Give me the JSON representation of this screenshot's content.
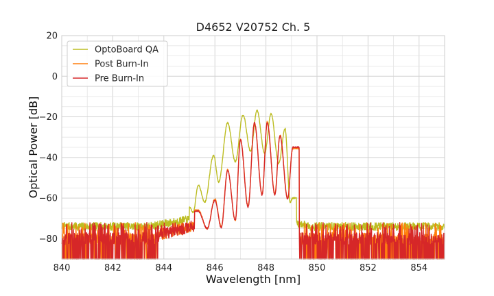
{
  "chart_data": {
    "type": "line",
    "title": "D4652 V20752 Ch. 5",
    "xlabel": "Wavelength [nm]",
    "ylabel": "Optical Power [dB]",
    "xlim": [
      840,
      855
    ],
    "ylim": [
      -90,
      20
    ],
    "xticks": [
      840,
      842,
      844,
      846,
      848,
      850,
      852,
      854
    ],
    "yticks": [
      -80,
      -60,
      -40,
      -20,
      0,
      20
    ],
    "ytick_labels": [
      "−80",
      "−60",
      "−40",
      "−20",
      "0",
      "20"
    ],
    "grid": true,
    "legend_position": "upper-left",
    "series": [
      {
        "name": "OptoBoard QA",
        "color": "#bcbd22",
        "noise_floor": -74,
        "band": [
          845.0,
          849.2
        ],
        "peaks": [
          {
            "x": 844.95,
            "y": -63.5
          },
          {
            "x": 845.35,
            "y": -53.5
          },
          {
            "x": 845.95,
            "y": -39.0
          },
          {
            "x": 846.5,
            "y": -23.0
          },
          {
            "x": 847.1,
            "y": -19.0
          },
          {
            "x": 847.65,
            "y": -16.8
          },
          {
            "x": 848.2,
            "y": -18.5
          },
          {
            "x": 848.75,
            "y": -26.0
          },
          {
            "x": 849.05,
            "y": -60.0
          }
        ],
        "valleys": [
          {
            "x": 845.15,
            "y": -67.0
          },
          {
            "x": 845.6,
            "y": -62.0
          },
          {
            "x": 846.15,
            "y": -52.0
          },
          {
            "x": 846.8,
            "y": -42.0
          },
          {
            "x": 847.4,
            "y": -37.0
          },
          {
            "x": 847.95,
            "y": -38.0
          },
          {
            "x": 848.5,
            "y": -43.0
          },
          {
            "x": 848.95,
            "y": -62.0
          }
        ]
      },
      {
        "name": "Post Burn-In",
        "color": "#ff7f0e",
        "noise_floor": -80,
        "band": [
          845.2,
          849.3
        ],
        "peaks": [
          {
            "x": 845.35,
            "y": -66.0
          },
          {
            "x": 846.0,
            "y": -60.5
          },
          {
            "x": 846.5,
            "y": -46.0
          },
          {
            "x": 847.0,
            "y": -31.0
          },
          {
            "x": 847.55,
            "y": -23.0
          },
          {
            "x": 848.05,
            "y": -22.5
          },
          {
            "x": 848.55,
            "y": -29.0
          },
          {
            "x": 849.05,
            "y": -35.5
          }
        ],
        "valleys": [
          {
            "x": 845.7,
            "y": -75.0
          },
          {
            "x": 846.25,
            "y": -74.0
          },
          {
            "x": 846.8,
            "y": -71.0
          },
          {
            "x": 847.3,
            "y": -64.0
          },
          {
            "x": 847.85,
            "y": -58.0
          },
          {
            "x": 848.35,
            "y": -58.0
          },
          {
            "x": 848.85,
            "y": -60.0
          }
        ]
      },
      {
        "name": "Pre Burn-In",
        "color": "#d62728",
        "noise_floor": -80,
        "band": [
          845.2,
          849.3
        ],
        "peaks": [
          {
            "x": 845.35,
            "y": -66.5
          },
          {
            "x": 846.0,
            "y": -61.0
          },
          {
            "x": 846.5,
            "y": -46.5
          },
          {
            "x": 847.0,
            "y": -31.5
          },
          {
            "x": 847.55,
            "y": -23.0
          },
          {
            "x": 848.05,
            "y": -23.0
          },
          {
            "x": 848.55,
            "y": -29.5
          },
          {
            "x": 849.05,
            "y": -35.0
          }
        ],
        "valleys": [
          {
            "x": 845.7,
            "y": -75.0
          },
          {
            "x": 846.25,
            "y": -74.5
          },
          {
            "x": 846.8,
            "y": -71.0
          },
          {
            "x": 847.3,
            "y": -64.5
          },
          {
            "x": 847.85,
            "y": -58.5
          },
          {
            "x": 848.35,
            "y": -58.5
          },
          {
            "x": 848.85,
            "y": -60.5
          }
        ]
      }
    ]
  }
}
